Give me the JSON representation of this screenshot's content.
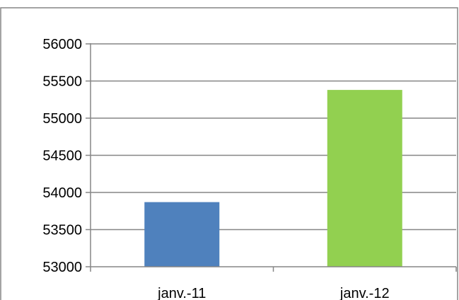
{
  "chart_data": {
    "type": "bar",
    "title": "",
    "xlabel": "",
    "ylabel": "",
    "categories": [
      "janv.-11",
      "janv.-12"
    ],
    "values": [
      53870,
      55380
    ],
    "bar_colors": [
      "#4f81bd",
      "#92d050"
    ],
    "ylim": [
      53000,
      56000
    ],
    "yticks": [
      53000,
      53500,
      54000,
      54500,
      55000,
      55500,
      56000
    ],
    "ytick_labels": [
      "53000",
      "53500",
      "54000",
      "54500",
      "55000",
      "55500",
      "56000"
    ],
    "grid": true,
    "legend": "none",
    "colors": {
      "gridline": "#868686",
      "axis": "#868686",
      "border": "#868686",
      "background": "#ffffff"
    }
  }
}
